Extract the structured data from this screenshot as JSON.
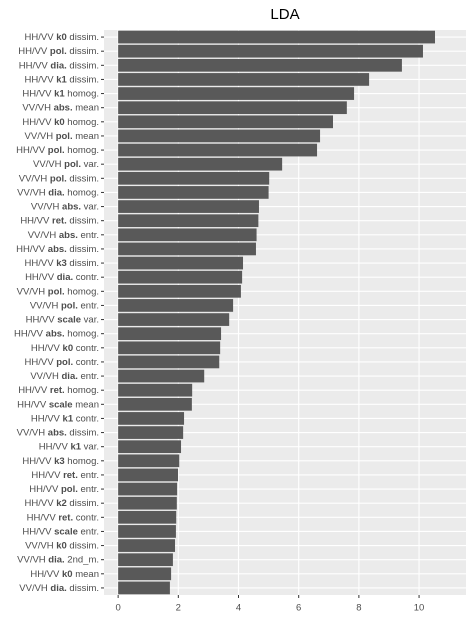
{
  "chart_data": {
    "type": "barh",
    "title": "LDA",
    "categories": [
      "HH/VV k0 dissim.",
      "HH/VV pol. dissim.",
      "HH/VV dia. dissim.",
      "HH/VV k1 dissim.",
      "HH/VV k1 homog.",
      "VV/VH abs. mean",
      "HH/VV k0 homog.",
      "VV/VH pol. mean",
      "HH/VV pol. homog.",
      "VV/VH pol. var.",
      "VV/VH pol. dissim.",
      "VV/VH dia. homog.",
      "VV/VH abs. var.",
      "HH/VV ret. dissim.",
      "VV/VH abs. entr.",
      "HH/VV abs. dissim.",
      "HH/VV k3 dissim.",
      "HH/VV dia. contr.",
      "VV/VH pol. homog.",
      "VV/VH pol. entr.",
      "HH/VV scale var.",
      "HH/VV abs. homog.",
      "HH/VV k0 contr.",
      "HH/VV pol. contr.",
      "VV/VH dia. entr.",
      "HH/VV ret. homog.",
      "HH/VV scale mean",
      "HH/VV k1 contr.",
      "VV/VH abs. dissim.",
      "HH/VV k1 var.",
      "HH/VV k3 homog.",
      "HH/VV ret. entr.",
      "HH/VV pol. entr.",
      "HH/VV k2 dissim.",
      "HH/VV ret. contr.",
      "HH/VV scale entr.",
      "VV/VH k0 dissim.",
      "VV/VH dia. 2nd_m.",
      "HH/VV k0 mean",
      "VV/VH dia. dissim."
    ],
    "values": [
      10.53,
      10.13,
      9.43,
      8.34,
      7.84,
      7.6,
      7.14,
      6.71,
      6.61,
      5.45,
      5.02,
      5.0,
      4.68,
      4.66,
      4.6,
      4.58,
      4.15,
      4.12,
      4.08,
      3.82,
      3.69,
      3.42,
      3.39,
      3.36,
      2.86,
      2.46,
      2.45,
      2.19,
      2.16,
      2.09,
      2.03,
      1.99,
      1.96,
      1.95,
      1.93,
      1.92,
      1.89,
      1.82,
      1.76,
      1.72
    ],
    "color": "#595959",
    "xlim": [
      -0.47,
      11.56
    ],
    "xticks": [
      0,
      2,
      4,
      6,
      8,
      10
    ],
    "grid": true
  }
}
